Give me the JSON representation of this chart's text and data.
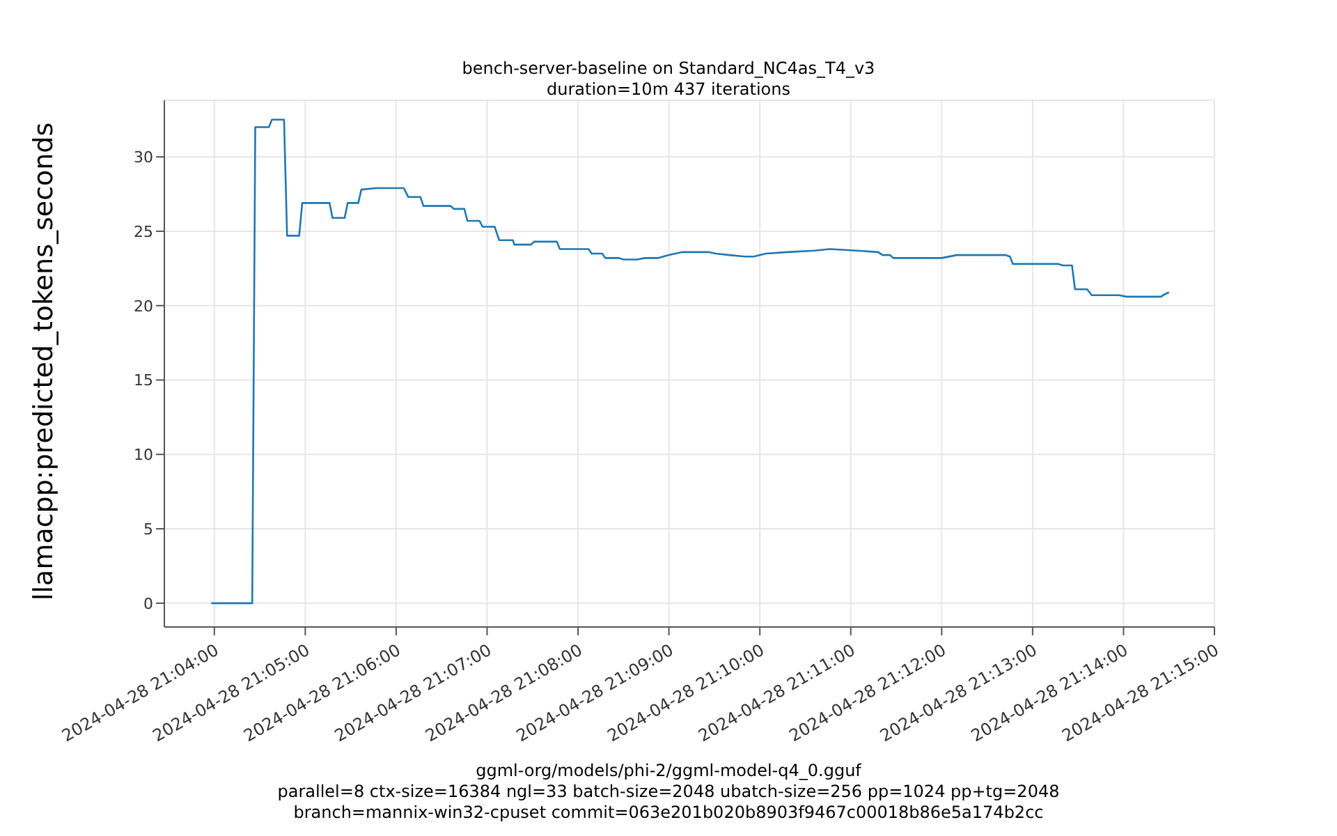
{
  "chart_data": {
    "type": "line",
    "title": "bench-server-baseline on Standard_NC4as_T4_v3",
    "subtitle": "duration=10m 437 iterations",
    "ylabel": "llamacpp:predicted_tokens_seconds",
    "annotations": [
      "ggml-org/models/phi-2/ggml-model-q4_0.gguf",
      "parallel=8 ctx-size=16384 ngl=33 batch-size=2048 ubatch-size=256 pp=1024 pp+tg=2048",
      "branch=mannix-win32-cpuset commit=063e201b020b8903f9467c00018b86e5a174b2cc"
    ],
    "x": [
      "2024-04-28T21:03:58",
      "2024-04-28T21:04:25",
      "2024-04-28T21:04:27",
      "2024-04-28T21:04:36",
      "2024-04-28T21:04:38",
      "2024-04-28T21:04:46",
      "2024-04-28T21:04:48",
      "2024-04-28T21:04:56",
      "2024-04-28T21:04:58",
      "2024-04-28T21:05:16",
      "2024-04-28T21:05:18",
      "2024-04-28T21:05:26",
      "2024-04-28T21:05:28",
      "2024-04-28T21:05:35",
      "2024-04-28T21:05:37",
      "2024-04-28T21:05:47",
      "2024-04-28T21:06:05",
      "2024-04-28T21:06:08",
      "2024-04-28T21:06:16",
      "2024-04-28T21:06:18",
      "2024-04-28T21:06:36",
      "2024-04-28T21:06:38",
      "2024-04-28T21:06:45",
      "2024-04-28T21:06:47",
      "2024-04-28T21:06:55",
      "2024-04-28T21:06:57",
      "2024-04-28T21:07:05",
      "2024-04-28T21:07:08",
      "2024-04-28T21:07:17",
      "2024-04-28T21:07:18",
      "2024-04-28T21:07:29",
      "2024-04-28T21:07:31",
      "2024-04-28T21:07:46",
      "2024-04-28T21:07:48",
      "2024-04-28T21:08:07",
      "2024-04-28T21:08:09",
      "2024-04-28T21:08:16",
      "2024-04-28T21:08:18",
      "2024-04-28T21:08:27",
      "2024-04-28T21:08:30",
      "2024-04-28T21:08:39",
      "2024-04-28T21:08:44",
      "2024-04-28T21:08:53",
      "2024-04-28T21:09:00",
      "2024-04-28T21:09:09",
      "2024-04-28T21:09:26",
      "2024-04-28T21:09:31",
      "2024-04-28T21:09:40",
      "2024-04-28T21:09:50",
      "2024-04-28T21:09:56",
      "2024-04-28T21:10:04",
      "2024-04-28T21:10:18",
      "2024-04-28T21:10:36",
      "2024-04-28T21:10:46",
      "2024-04-28T21:11:04",
      "2024-04-28T21:11:18",
      "2024-04-28T21:11:21",
      "2024-04-28T21:11:26",
      "2024-04-28T21:11:28",
      "2024-04-28T21:12:00",
      "2024-04-28T21:12:10",
      "2024-04-28T21:12:42",
      "2024-04-28T21:12:45",
      "2024-04-28T21:12:47",
      "2024-04-28T21:13:17",
      "2024-04-28T21:13:20",
      "2024-04-28T21:13:26",
      "2024-04-28T21:13:28",
      "2024-04-28T21:13:36",
      "2024-04-28T21:13:39",
      "2024-04-28T21:13:57",
      "2024-04-28T21:14:02",
      "2024-04-28T21:14:25",
      "2024-04-28T21:14:26",
      "2024-04-28T21:14:30"
    ],
    "series": [
      {
        "color": "#1f77b4",
        "values": [
          0,
          0,
          32.0,
          32.0,
          32.5,
          32.5,
          24.7,
          24.7,
          26.9,
          26.9,
          25.9,
          25.9,
          26.9,
          26.9,
          27.8,
          27.9,
          27.9,
          27.3,
          27.3,
          26.7,
          26.7,
          26.5,
          26.5,
          25.7,
          25.7,
          25.3,
          25.3,
          24.4,
          24.4,
          24.1,
          24.1,
          24.3,
          24.3,
          23.8,
          23.8,
          23.5,
          23.5,
          23.2,
          23.2,
          23.1,
          23.1,
          23.2,
          23.2,
          23.4,
          23.6,
          23.6,
          23.5,
          23.4,
          23.3,
          23.3,
          23.5,
          23.6,
          23.7,
          23.8,
          23.7,
          23.6,
          23.4,
          23.4,
          23.2,
          23.2,
          23.4,
          23.4,
          23.3,
          22.8,
          22.8,
          22.7,
          22.7,
          21.1,
          21.1,
          20.7,
          20.7,
          20.6,
          20.6,
          20.7,
          20.9
        ]
      }
    ],
    "xlim": [
      "2024-04-28T21:03:27",
      "2024-04-28T21:15:00"
    ],
    "xticks": [
      {
        "value": "2024-04-28T21:04",
        "label": "2024-04-28 21:04:00"
      },
      {
        "value": "2024-04-28T21:05",
        "label": "2024-04-28 21:05:00"
      },
      {
        "value": "2024-04-28T21:06",
        "label": "2024-04-28 21:06:00"
      },
      {
        "value": "2024-04-28T21:07",
        "label": "2024-04-28 21:07:00"
      },
      {
        "value": "2024-04-28T21:08",
        "label": "2024-04-28 21:08:00"
      },
      {
        "value": "2024-04-28T21:09",
        "label": "2024-04-28 21:09:00"
      },
      {
        "value": "2024-04-28T21:10",
        "label": "2024-04-28 21:10:00"
      },
      {
        "value": "2024-04-28T21:11",
        "label": "2024-04-28 21:11:00"
      },
      {
        "value": "2024-04-28T21:12",
        "label": "2024-04-28 21:12:00"
      },
      {
        "value": "2024-04-28T21:13",
        "label": "2024-04-28 21:13:00"
      },
      {
        "value": "2024-04-28T21:14",
        "label": "2024-04-28 21:14:00"
      },
      {
        "value": "2024-04-28T21:15",
        "label": "2024-04-28 21:15:00"
      }
    ],
    "ylim": [
      -1.6,
      33.8
    ],
    "yticks": [
      0,
      5,
      10,
      15,
      20,
      25,
      30
    ],
    "grid": true,
    "legend": false,
    "marker": "none",
    "line_style": "solid"
  }
}
